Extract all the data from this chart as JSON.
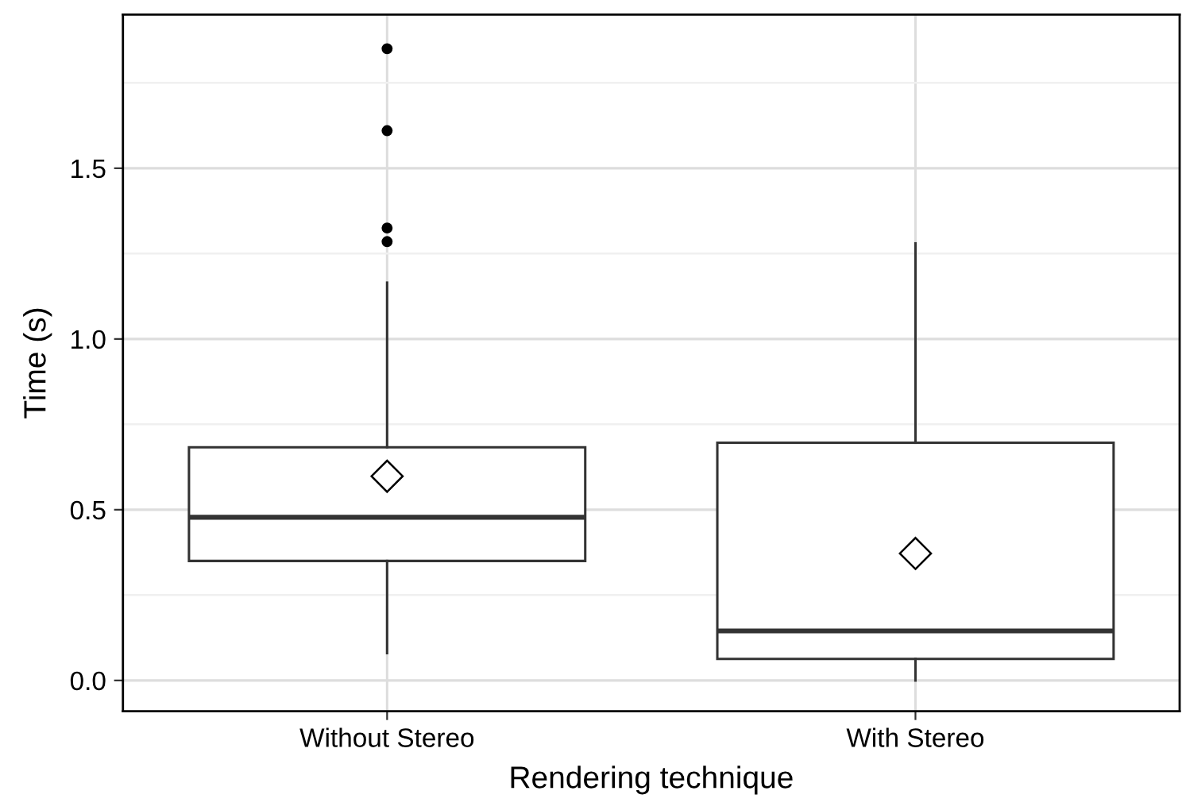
{
  "chart_data": {
    "type": "box",
    "xlabel": "Rendering technique",
    "ylabel": "Time (s)",
    "categories": [
      "Without Stereo",
      "With Stereo"
    ],
    "boxes": [
      {
        "low": 0.08,
        "q1": 0.35,
        "median": 0.478,
        "q3": 0.683,
        "high": 1.165,
        "mean": 0.598,
        "outliers": [
          1.285,
          1.325,
          1.61,
          1.85
        ]
      },
      {
        "low": 0.0,
        "q1": 0.063,
        "median": 0.145,
        "q3": 0.696,
        "high": 1.28,
        "mean": 0.372
      }
    ],
    "ylim": [
      -0.09,
      1.95
    ],
    "yticks": [
      {
        "value": 0,
        "label": "0.0"
      },
      {
        "value": 0.25,
        "label": null
      },
      0.5,
      {
        "value": 0.75,
        "label": null
      },
      {
        "value": 1,
        "label": "1.0"
      },
      {
        "value": 1.25,
        "label": null
      },
      1.5,
      {
        "value": 1.75,
        "label": null
      }
    ],
    "grid": true
  }
}
